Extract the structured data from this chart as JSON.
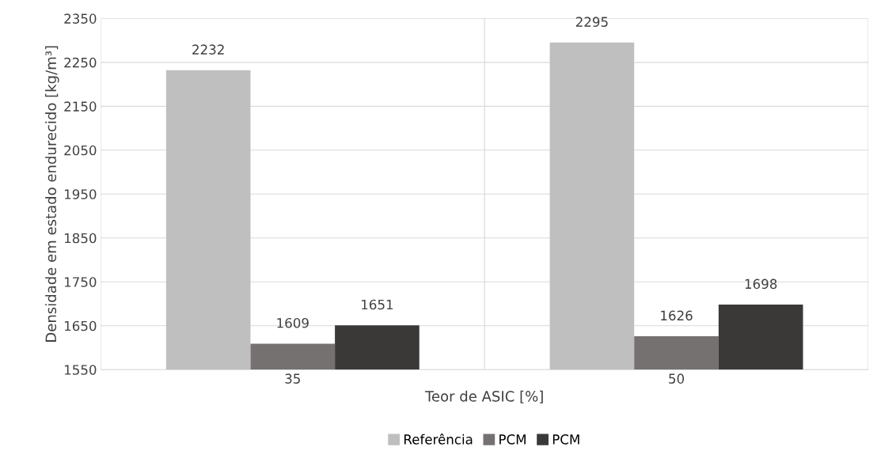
{
  "chart_data": {
    "type": "bar",
    "xlabel": "Teor de ASIC [%]",
    "ylabel": "Densidade em estado endurecido [kg/m³]",
    "categories": [
      "35",
      "50"
    ],
    "series": [
      {
        "name": "Referência",
        "color": "#bfbfbf",
        "values": [
          2232,
          2295
        ]
      },
      {
        "name": "PCM",
        "color": "#767171",
        "values": [
          1609,
          1626
        ]
      },
      {
        "name": "PCM",
        "color": "#3b3838",
        "values": [
          1651,
          1698
        ]
      }
    ],
    "ylim": [
      1550,
      2350
    ],
    "yticks": [
      1550,
      1650,
      1750,
      1850,
      1950,
      2050,
      2150,
      2250,
      2350
    ],
    "grid": true,
    "legend": "bottom",
    "data_labels": true
  }
}
